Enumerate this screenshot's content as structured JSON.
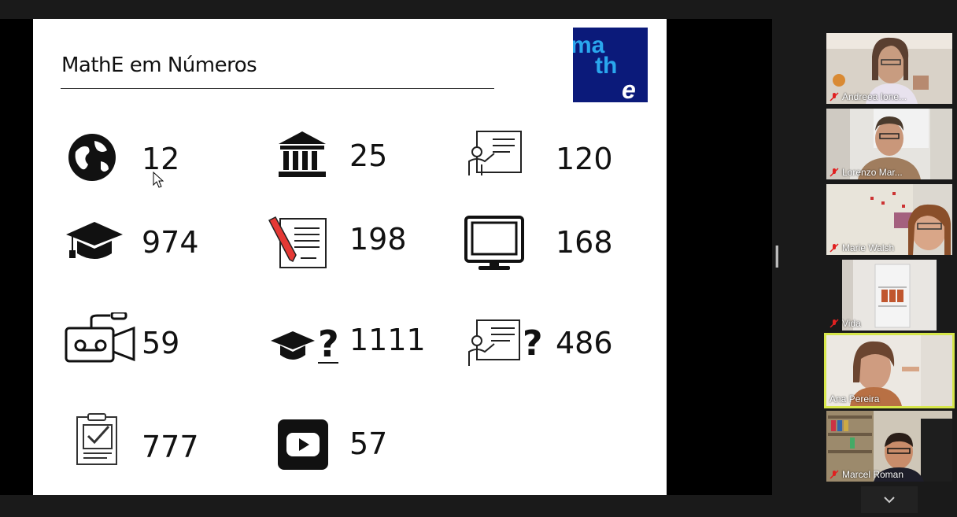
{
  "slide": {
    "title": "MathE em Números",
    "logo_text": "mathe",
    "stats": [
      {
        "icon": "globe-icon",
        "value": "12"
      },
      {
        "icon": "institution-icon",
        "value": "25"
      },
      {
        "icon": "teacher-board-icon",
        "value": "120"
      },
      {
        "icon": "graduation-cap-icon",
        "value": "974"
      },
      {
        "icon": "document-pen-icon",
        "value": "198"
      },
      {
        "icon": "monitor-icon",
        "value": "168"
      },
      {
        "icon": "video-camera-icon",
        "value": "59"
      },
      {
        "icon": "graduation-cap-question-icon",
        "value": "1111"
      },
      {
        "icon": "teacher-board-question-icon",
        "value": "486"
      },
      {
        "icon": "clipboard-check-icon",
        "value": "777"
      },
      {
        "icon": "youtube-icon",
        "value": "57"
      }
    ]
  },
  "participants": [
    {
      "name": "Andreea Ione...",
      "muted": true,
      "active": false
    },
    {
      "name": "Lorenzo Mar...",
      "muted": true,
      "active": false
    },
    {
      "name": "Marie Walsh",
      "muted": true,
      "active": false
    },
    {
      "name": "Vida",
      "muted": true,
      "active": false
    },
    {
      "name": "Ana Pereira",
      "muted": false,
      "active": true
    },
    {
      "name": "Marcel Roman",
      "muted": true,
      "active": false
    }
  ],
  "colors": {
    "logo_bg": "#0b1a7a",
    "logo_text": "#2aa7ee",
    "active_border": "#d6e64a",
    "mute_red": "#e02020"
  }
}
